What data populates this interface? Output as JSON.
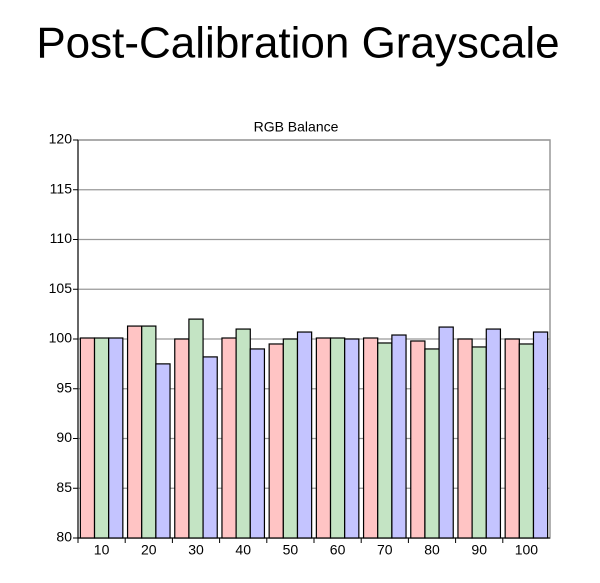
{
  "chart_data": {
    "type": "bar",
    "title": "Post-Calibration Grayscale",
    "subtitle": "RGB Balance",
    "categories": [
      10,
      20,
      30,
      40,
      50,
      60,
      70,
      80,
      90,
      100
    ],
    "series": [
      {
        "color": "#ffc4c4",
        "values": [
          100.1,
          101.3,
          100.0,
          100.1,
          99.5,
          100.1,
          100.1,
          99.8,
          100.0,
          100.0
        ]
      },
      {
        "color": "#c4e4c4",
        "values": [
          100.1,
          101.3,
          102.0,
          101.0,
          100.0,
          100.1,
          99.6,
          99.0,
          99.2,
          99.5
        ]
      },
      {
        "color": "#c4c4ff",
        "values": [
          100.1,
          97.5,
          98.2,
          99.0,
          100.7,
          100.0,
          100.4,
          101.2,
          101.0,
          100.7
        ]
      }
    ],
    "ylim": [
      80,
      120
    ],
    "yticks": [
      80,
      85,
      90,
      95,
      100,
      105,
      110,
      115,
      120
    ],
    "grid": true
  }
}
